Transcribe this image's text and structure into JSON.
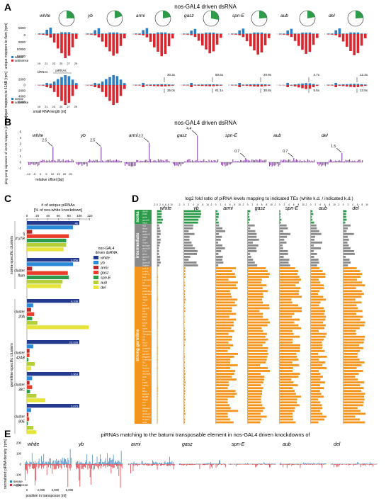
{
  "panels": {
    "A": "A",
    "B": "B",
    "C": "C",
    "D": "D",
    "E": "E"
  },
  "titles": {
    "A": "nos-GAL4 driven dsRNA",
    "B": "nos-GAL4 driven dsRNA",
    "D": "log2 fold ratio of piRNA levels mapping to indicated TEs (white k.d. / indicated k.d.)",
    "E": "piRNAs matching to the batumi transposable element in nos-GAL4 driven knockdowns of"
  },
  "genotypes": [
    "white",
    "yb",
    "armi",
    "gasz",
    "spn-E",
    "aub",
    "del"
  ],
  "colors": {
    "sense": "#2e7fc2",
    "antisense": "#d9262f",
    "ppsig": "#8e4fa8",
    "soma": "#2e9b4a",
    "intermediate": "#8a8a8a",
    "germline": "#f3941c",
    "navy": "#243a8c",
    "blue": "#2b8ad8",
    "darkred": "#b22b2b",
    "red": "#ea3d2c",
    "lime": "#b4cf38",
    "yellow": "#e6e33a",
    "green": "#2e9b4a"
  },
  "panelA": {
    "top_ylabel": "unique mappers to flam [rpm]",
    "bottom_ylabel": "unique mappers to 42AB [rpm]",
    "xlabel": "small RNA length [nt]",
    "pie_label": "% miRNA",
    "sirna_label": "siRNAs",
    "pirna_label": "piRNAs",
    "top_yticks": [
      "5000",
      "0",
      "5000",
      "10000",
      "15000"
    ],
    "bottom_yticks": [
      "2000",
      "0",
      "2000",
      "4000",
      "6000"
    ],
    "xticks": [
      "19",
      "21",
      "23",
      "25",
      "27",
      "29"
    ],
    "legend_sense": "sense",
    "legend_antisense": "antisense",
    "folds": [
      {
        "up": "",
        "down": ""
      },
      {
        "up": "",
        "down": ""
      },
      {
        "up": "30.3x",
        "down": "35.0x"
      },
      {
        "up": "50.6x",
        "down": "61.1x"
      },
      {
        "up": "20.9x",
        "down": "30.8x"
      },
      {
        "up": "4.7x",
        "down": "5.6x"
      },
      {
        "up": "12.3x",
        "down": "13.8x"
      }
    ]
  },
  "panelB": {
    "ylabel": "ping-pong signature of 42AB mappers [z-score]",
    "xlabel": "relative offset [bp]",
    "yticks": [
      "5",
      "4",
      "3",
      "2",
      "1",
      "0",
      "-1"
    ],
    "xticks": [
      "-10",
      "-5",
      "0",
      "5",
      "10",
      "15",
      "20",
      "25"
    ],
    "zscores": [
      "2.5",
      "2.5",
      "3.2",
      "4.4",
      "0.7",
      "0.7",
      "1.5"
    ]
  },
  "panelC": {
    "axis_title": "# of unique piRNAs",
    "axis_subtitle": "[% of nos-white knockdown]",
    "xticks": [
      "0",
      "20",
      "40",
      "60",
      "80",
      "100",
      "120"
    ],
    "legend_title": "nos-GAL4 driven dsRNA",
    "legend": [
      "white",
      "yb",
      "armi",
      "gasz",
      "spn-E",
      "aub",
      "del"
    ],
    "group_soma": "soma-specific clusters",
    "group_germ": "germline-specific clusters",
    "clusters": [
      {
        "name": "tj 3'UTR",
        "count": "46",
        "values": [
          100,
          88,
          10,
          80,
          75,
          75,
          70
        ]
      },
      {
        "name": "cluster flam",
        "count": "3,858",
        "values": [
          100,
          88,
          10,
          78,
          80,
          68,
          65
        ]
      },
      {
        "name": "cluster 20A",
        "count": "4,108",
        "values": [
          100,
          12,
          8,
          14,
          10,
          20,
          118
        ]
      },
      {
        "name": "cluster 42AB",
        "count": "23,028",
        "values": [
          100,
          12,
          5,
          5,
          3,
          15,
          8
        ]
      },
      {
        "name": "cluster 38C",
        "count": "1,963",
        "values": [
          100,
          10,
          5,
          10,
          6,
          18,
          35
        ]
      },
      {
        "name": "cluster 80E",
        "count": "2,673",
        "values": [
          100,
          8,
          3,
          4,
          2,
          12,
          18
        ]
      }
    ]
  },
  "panelD": {
    "xticks": [
      "-2",
      "0",
      "2",
      "4",
      "6",
      "8",
      "10"
    ],
    "soma_label": "soma",
    "inter_label": "intermediate",
    "germ_label": "strong germline",
    "soma_tes": [
      "gypsy",
      "ZAM",
      "idefix",
      "gypsy5",
      "Tabor"
    ],
    "inter_tes": [
      "412",
      "blood",
      "diver",
      "stalker2",
      "mdg1",
      "297",
      "Tirant",
      "springer",
      "gypsy10",
      "17.6",
      "gtwin",
      "gypsy3",
      "flea",
      "gypsy12",
      "Stalker"
    ],
    "germ_tes": [
      "HeT-A",
      "jockey",
      "TART-A",
      "Doc",
      "I-element",
      "G2",
      "Burdock",
      "rover",
      "HMS-Beagle",
      "F-element",
      "Juan",
      "mdg3",
      "Ivk",
      "R1A1",
      "gypsy6",
      "roo",
      "Circe",
      "Rt1b",
      "Max",
      "Cr1a",
      "Bel",
      "copia",
      "Quasimodo",
      "Transpac",
      "G4",
      "G5",
      "Het-A",
      "3S18",
      "invader1",
      "Porto1",
      "gypsy4",
      "Baggins",
      "X-element",
      "Tc1",
      "Doc2",
      "Helena",
      "accord",
      "micropia",
      "NOF",
      "Fw",
      "TART",
      "Idefix2",
      "G6",
      "Rt1c",
      "batumi",
      "Dm88",
      "mdg4",
      "Cr1",
      "Tc3",
      "Ulysses",
      "Tom1",
      "Jockey2",
      "Penelope",
      "Hopper",
      "opus"
    ]
  },
  "panelE": {
    "ylabel": "normalized piRNA density [rpm]",
    "xlabel": "position in transposon [nt]",
    "yticks": [
      "200",
      "100",
      "0",
      "-100",
      "-200"
    ],
    "xticks": [
      "0",
      "2,000",
      "4,000",
      "6,000"
    ],
    "legend_sense": "sense",
    "legend_antisense": "antisense"
  }
}
